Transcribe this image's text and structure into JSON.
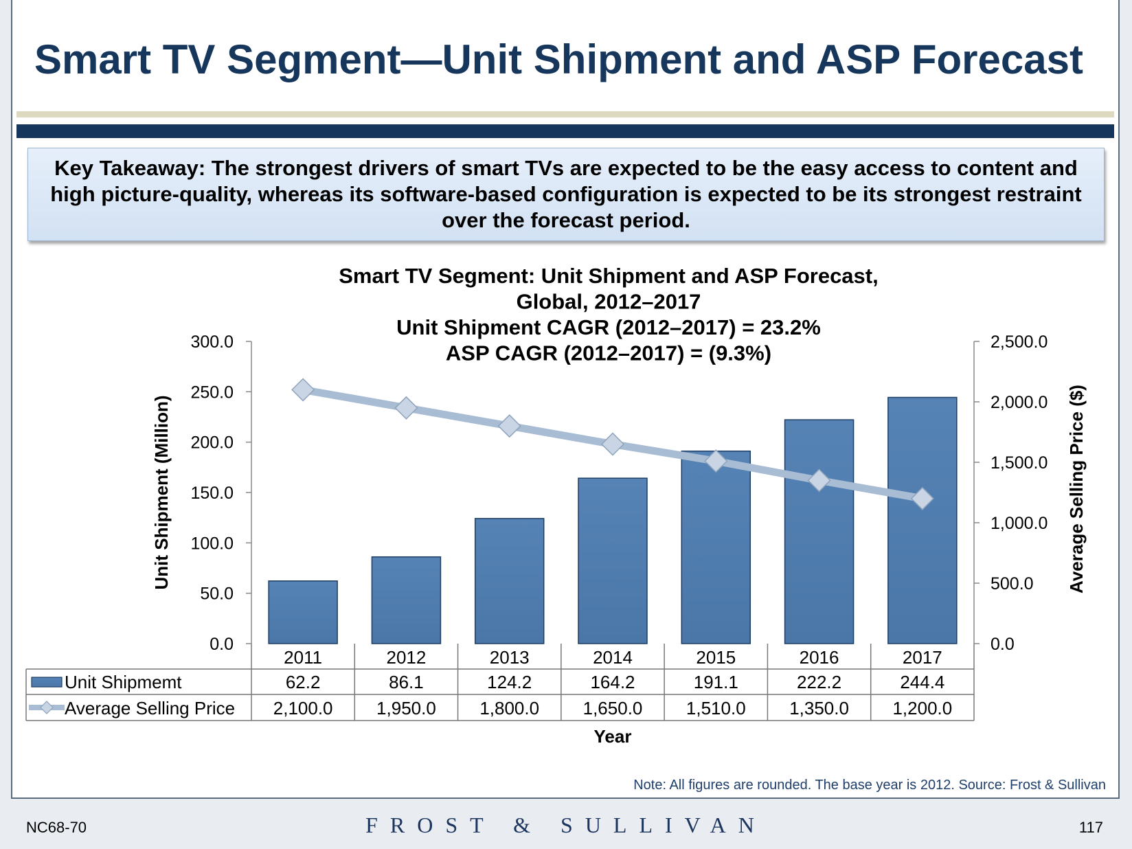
{
  "slide": {
    "title": "Smart TV Segment—Unit Shipment and ASP Forecast",
    "takeaway": "Key Takeaway: The strongest drivers of smart TVs are expected to be the easy access to content and high picture-quality, whereas its software-based configuration is expected to be its strongest restraint over the forecast period.",
    "note": "Note: All figures are rounded. The base year is 2012. Source: Frost & Sullivan",
    "footer_code": "NC68-70",
    "logo_text": "FROST & SULLIVAN",
    "page_number": "117"
  },
  "chart_data": {
    "type": "bar",
    "title_lines": [
      "Smart TV Segment: Unit Shipment and ASP Forecast,",
      "Global, 2012–2017",
      "Unit Shipment CAGR (2012–2017) = 23.2%",
      "ASP CAGR (2012–2017) = (9.3%)"
    ],
    "categories": [
      "2011",
      "2012",
      "2013",
      "2014",
      "2015",
      "2016",
      "2017"
    ],
    "xlabel": "Year",
    "ylabel": "Unit Shipment (Million)",
    "y2label": "Average Selling Price ($)",
    "ylim": [
      0,
      300
    ],
    "y2lim": [
      0,
      2500
    ],
    "yticks": [
      "0.0",
      "50.0",
      "100.0",
      "150.0",
      "200.0",
      "250.0",
      "300.0"
    ],
    "y2ticks": [
      "0.0",
      "500.0",
      "1,000.0",
      "1,500.0",
      "2,000.0",
      "2,500.0"
    ],
    "series": [
      {
        "name": "Unit Shipmemt",
        "kind": "bar",
        "axis": "left",
        "color": "#4a76a8",
        "values": [
          62.2,
          86.1,
          124.2,
          164.2,
          191.1,
          222.2,
          244.4
        ],
        "labels": [
          "62.2",
          "86.1",
          "124.2",
          "164.2",
          "191.1",
          "222.2",
          "244.4"
        ]
      },
      {
        "name": "Average Selling Price",
        "kind": "line",
        "axis": "right",
        "color": "#a8bcd4",
        "values": [
          2100,
          1950,
          1800,
          1650,
          1510,
          1350,
          1200
        ],
        "labels": [
          "2,100.0",
          "1,950.0",
          "1,800.0",
          "1,650.0",
          "1,510.0",
          "1,350.0",
          "1,200.0"
        ]
      }
    ],
    "grid": false,
    "legend": "data-table"
  }
}
